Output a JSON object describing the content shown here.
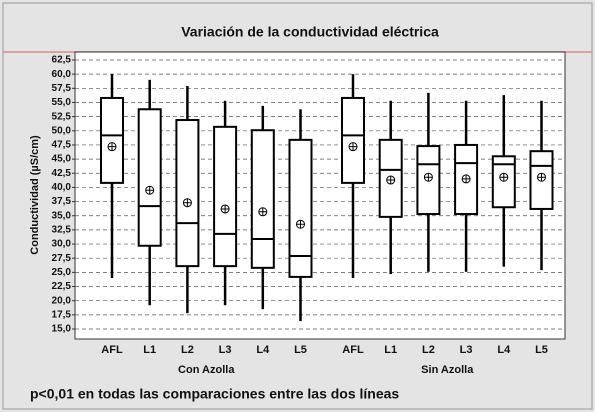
{
  "chart_data": {
    "type": "box",
    "title": "Variación de la conductividad eléctrica",
    "y_label": "Conductividad (µS/cm)",
    "ylim": [
      15.0,
      62.5
    ],
    "yticks": [
      {
        "value": 15.0,
        "label": "15,0"
      },
      {
        "value": 17.5,
        "label": "17,5"
      },
      {
        "value": 20.0,
        "label": "20,0"
      },
      {
        "value": 22.5,
        "label": "22,5"
      },
      {
        "value": 25.0,
        "label": "25,0"
      },
      {
        "value": 27.5,
        "label": "27,5"
      },
      {
        "value": 30.0,
        "label": "30,0"
      },
      {
        "value": 32.5,
        "label": "32,5"
      },
      {
        "value": 35.0,
        "label": "35,0"
      },
      {
        "value": 37.5,
        "label": "37,5"
      },
      {
        "value": 40.0,
        "label": "40,0"
      },
      {
        "value": 42.5,
        "label": "42,5"
      },
      {
        "value": 45.0,
        "label": "45,0"
      },
      {
        "value": 47.5,
        "label": "47,5"
      },
      {
        "value": 50.0,
        "label": "50,0"
      },
      {
        "value": 52.5,
        "label": "52,5"
      },
      {
        "value": 55.0,
        "label": "55,0"
      },
      {
        "value": 57.5,
        "label": "57,5"
      },
      {
        "value": 60.0,
        "label": "60,0"
      },
      {
        "value": 62.5,
        "label": "62,5"
      }
    ],
    "grid": true,
    "groups": [
      {
        "label": "Con Azolla",
        "categories": [
          "AFL",
          "L1",
          "L2",
          "L3",
          "L4",
          "L5"
        ],
        "boxes": [
          {
            "whisker_low": 24,
            "q1": 40.8,
            "median": 49.2,
            "q3": 55.8,
            "whisker_high": 60,
            "mean": 47.2
          },
          {
            "whisker_low": 19.2,
            "q1": 29.7,
            "median": 36.7,
            "q3": 53.8,
            "whisker_high": 59,
            "mean": 39.5
          },
          {
            "whisker_low": 17.8,
            "q1": 26.1,
            "median": 33.7,
            "q3": 51.9,
            "whisker_high": 57.9,
            "mean": 37.3
          },
          {
            "whisker_low": 19.2,
            "q1": 26.1,
            "median": 31.8,
            "q3": 50.7,
            "whisker_high": 55.3,
            "mean": 36.2
          },
          {
            "whisker_low": 18.5,
            "q1": 25.8,
            "median": 30.9,
            "q3": 50.1,
            "whisker_high": 54.4,
            "mean": 35.7
          },
          {
            "whisker_low": 16.4,
            "q1": 24.2,
            "median": 27.9,
            "q3": 48.4,
            "whisker_high": 53.8,
            "mean": 33.5
          }
        ]
      },
      {
        "label": "Sin Azolla",
        "categories": [
          "AFL",
          "L1",
          "L2",
          "L3",
          "L4",
          "L5"
        ],
        "boxes": [
          {
            "whisker_low": 24,
            "q1": 40.8,
            "median": 49.2,
            "q3": 55.8,
            "whisker_high": 60,
            "mean": 47.2
          },
          {
            "whisker_low": 24.7,
            "q1": 34.8,
            "median": 43.1,
            "q3": 48.4,
            "whisker_high": 55.3,
            "mean": 41.3
          },
          {
            "whisker_low": 25.1,
            "q1": 35.3,
            "median": 44.1,
            "q3": 47.3,
            "whisker_high": 56.7,
            "mean": 41.8
          },
          {
            "whisker_low": 25.1,
            "q1": 35.3,
            "median": 44.3,
            "q3": 47.5,
            "whisker_high": 55.3,
            "mean": 41.5
          },
          {
            "whisker_low": 26,
            "q1": 36.5,
            "median": 44.1,
            "q3": 45.5,
            "whisker_high": 56.3,
            "mean": 41.8
          },
          {
            "whisker_low": 25.4,
            "q1": 36.2,
            "median": 43.8,
            "q3": 46.4,
            "whisker_high": 55.3,
            "mean": 41.8
          }
        ]
      }
    ],
    "note": "p<0,01 en todas las comparaciones entre las dos líneas"
  }
}
